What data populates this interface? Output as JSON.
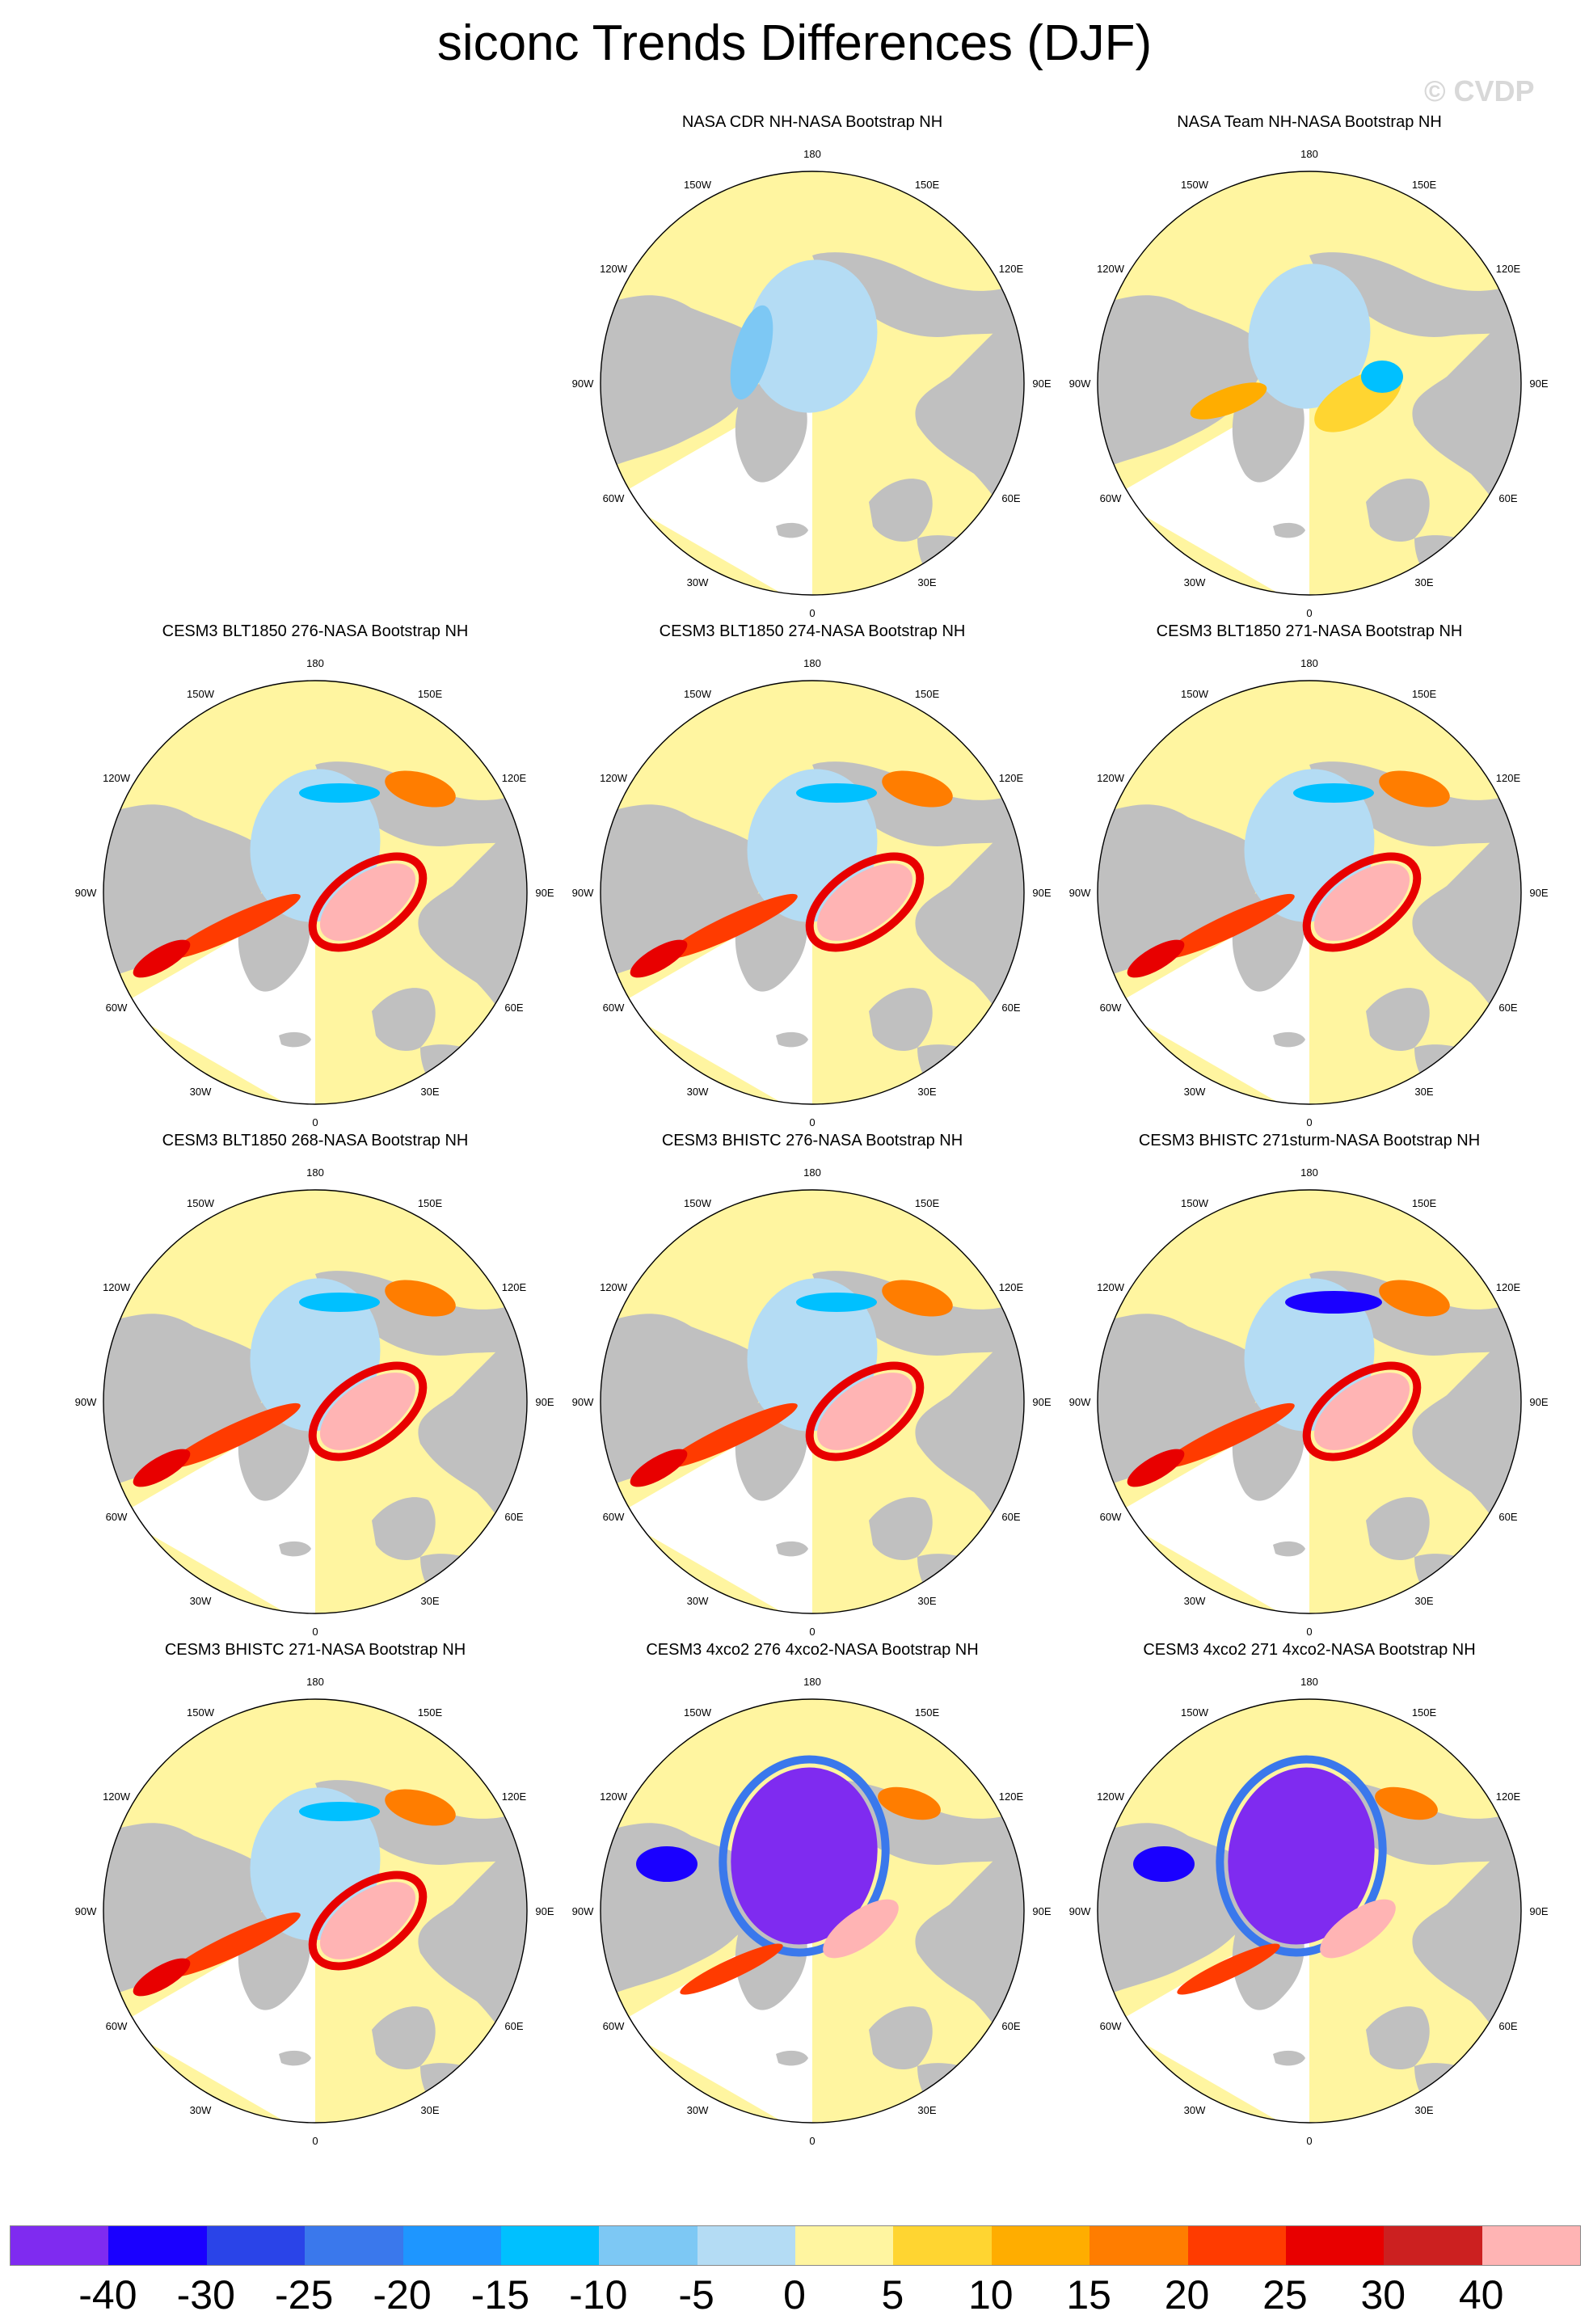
{
  "title": "siconc Trends Differences (DJF)",
  "watermark": "© CVDP",
  "panels": [
    {
      "title": "NASA CDR NH-NASA Bootstrap NH",
      "pattern": "obs-cdr"
    },
    {
      "title": "NASA Team NH-NASA Bootstrap NH",
      "pattern": "obs-team"
    },
    {
      "title": "CESM3 BLT1850 276-NASA Bootstrap NH",
      "pattern": "model"
    },
    {
      "title": "CESM3 BLT1850 274-NASA Bootstrap NH",
      "pattern": "model"
    },
    {
      "title": "CESM3 BLT1850 271-NASA Bootstrap NH",
      "pattern": "model"
    },
    {
      "title": "CESM3 BLT1850 268-NASA Bootstrap NH",
      "pattern": "model"
    },
    {
      "title": "CESM3 BHISTC 276-NASA Bootstrap NH",
      "pattern": "model"
    },
    {
      "title": "CESM3 BHISTC 271sturm-NASA Bootstrap NH",
      "pattern": "model-blue"
    },
    {
      "title": "CESM3 BHISTC 271-NASA Bootstrap NH",
      "pattern": "model"
    },
    {
      "title": "CESM3 4xco2 276 4xco2-NASA Bootstrap NH",
      "pattern": "co2"
    },
    {
      "title": "CESM3 4xco2 271 4xco2-NASA Bootstrap NH",
      "pattern": "co2"
    }
  ],
  "longitude_labels": [
    "180",
    "150E",
    "120E",
    "90E",
    "60E",
    "30E",
    "0",
    "30W",
    "60W",
    "90W",
    "120W",
    "150W"
  ],
  "colorbar": {
    "colors": [
      "#7f2bf0",
      "#1a00ff",
      "#2a44e8",
      "#3a78ec",
      "#1e96ff",
      "#00c0ff",
      "#7dc8f4",
      "#b4dcf4",
      "#fff5a0",
      "#ffd531",
      "#ffad00",
      "#ff7d00",
      "#ff3b00",
      "#e80000",
      "#cc2020",
      "#ffb4b4"
    ],
    "labels": [
      "-40",
      "-30",
      "-25",
      "-20",
      "-15",
      "-10",
      "-5",
      "0",
      "5",
      "10",
      "15",
      "20",
      "25",
      "30",
      "40"
    ]
  },
  "colors": {
    "land": "#c0c0c0",
    "ocean": "#fff5a0",
    "missing": "#ffffff"
  }
}
